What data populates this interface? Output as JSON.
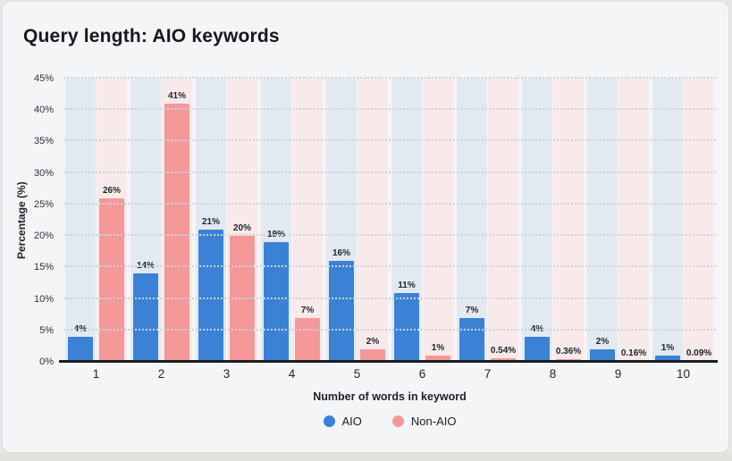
{
  "title": "Query length: AIO keywords",
  "chart_data": {
    "type": "bar",
    "title": "Query length: AIO keywords",
    "categories": [
      "1",
      "2",
      "3",
      "4",
      "5",
      "6",
      "7",
      "8",
      "9",
      "10"
    ],
    "series": [
      {
        "name": "AIO",
        "color": "#3b82d6",
        "band_color": "#e3e9f1",
        "values": [
          4,
          14,
          21,
          19,
          16,
          11,
          7,
          4,
          2,
          1
        ],
        "labels": [
          "4%",
          "14%",
          "21%",
          "19%",
          "16%",
          "11%",
          "7%",
          "4%",
          "2%",
          "1%"
        ]
      },
      {
        "name": "Non-AIO",
        "color": "#f59899",
        "band_color": "#f8eaea",
        "values": [
          26,
          41,
          20,
          7,
          2,
          1,
          0.54,
          0.36,
          0.16,
          0.09
        ],
        "labels": [
          "26%",
          "41%",
          "20%",
          "7%",
          "2%",
          "1%",
          "0.54%",
          "0.36%",
          "0.16%",
          "0.09%"
        ]
      }
    ],
    "xlabel": "Number of words in keyword",
    "ylabel": "Percentage (%)",
    "ylim": [
      0,
      45
    ],
    "ytick_step": 5,
    "yticks": [
      "0%",
      "5%",
      "10%",
      "15%",
      "20%",
      "25%",
      "30%",
      "35%",
      "40%",
      "45%"
    ],
    "grid": "dotted-horizontal",
    "legend_position": "bottom",
    "background_bands": "alternating light-blue / light-pink stripe behind each bar"
  }
}
